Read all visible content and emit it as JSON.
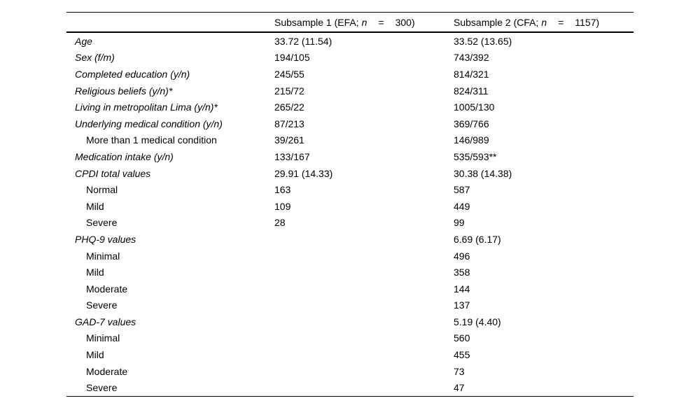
{
  "colors": {
    "background": "#ffffff",
    "text": "#000000",
    "rule": "#000000"
  },
  "table": {
    "header": {
      "col1": {
        "pre": "Subsample 1 (EFA;",
        "n": "n",
        "eq": "=",
        "count": "300)"
      },
      "col2": {
        "pre": "Subsample 2 (CFA;",
        "n": "n",
        "eq": "=",
        "count": "1157)"
      }
    },
    "rows": [
      {
        "label": "Age",
        "style": "italic",
        "c1": "33.72 (11.54)",
        "c2": "33.52 (13.65)"
      },
      {
        "label": "Sex (f/m)",
        "style": "italic",
        "c1": "194/105",
        "c2": "743/392"
      },
      {
        "label": "Completed education (y/n)",
        "style": "italic",
        "c1": "245/55",
        "c2": "814/321"
      },
      {
        "label": "Religious beliefs (y/n)*",
        "style": "italic",
        "c1": "215/72",
        "c2": "824/311"
      },
      {
        "label": "Living in metropolitan Lima (y/n)*",
        "style": "italic",
        "c1": "265/22",
        "c2": "1005/130"
      },
      {
        "label": "Underlying medical condition (y/n)",
        "style": "italic",
        "c1": "87/213",
        "c2": "369/766"
      },
      {
        "label": "More than 1 medical condition",
        "style": "indent",
        "c1": "39/261",
        "c2": "146/989"
      },
      {
        "label": "Medication intake (y/n)",
        "style": "italic",
        "c1": "133/167",
        "c2": "535/593**"
      },
      {
        "label": "CPDI total values",
        "style": "italic",
        "c1": "29.91 (14.33)",
        "c2": "30.38 (14.38)"
      },
      {
        "label": "Normal",
        "style": "indent",
        "c1": "163",
        "c2": "587"
      },
      {
        "label": "Mild",
        "style": "indent",
        "c1": "109",
        "c2": "449"
      },
      {
        "label": "Severe",
        "style": "indent",
        "c1": "28",
        "c2": "99"
      },
      {
        "label": "PHQ-9 values",
        "style": "italic",
        "c1": "",
        "c2": "6.69 (6.17)"
      },
      {
        "label": "Minimal",
        "style": "indent",
        "c1": "",
        "c2": "496"
      },
      {
        "label": "Mild",
        "style": "indent",
        "c1": "",
        "c2": "358"
      },
      {
        "label": "Moderate",
        "style": "indent",
        "c1": "",
        "c2": "144"
      },
      {
        "label": "Severe",
        "style": "indent",
        "c1": "",
        "c2": "137"
      },
      {
        "label": "GAD-7 values",
        "style": "italic",
        "c1": "",
        "c2": "5.19 (4.40)"
      },
      {
        "label": "Minimal",
        "style": "indent",
        "c1": "",
        "c2": "560"
      },
      {
        "label": "Mild",
        "style": "indent",
        "c1": "",
        "c2": "455"
      },
      {
        "label": "Moderate",
        "style": "indent",
        "c1": "",
        "c2": "73"
      },
      {
        "label": "Severe",
        "style": "indent",
        "c1": "",
        "c2": "47"
      }
    ]
  }
}
